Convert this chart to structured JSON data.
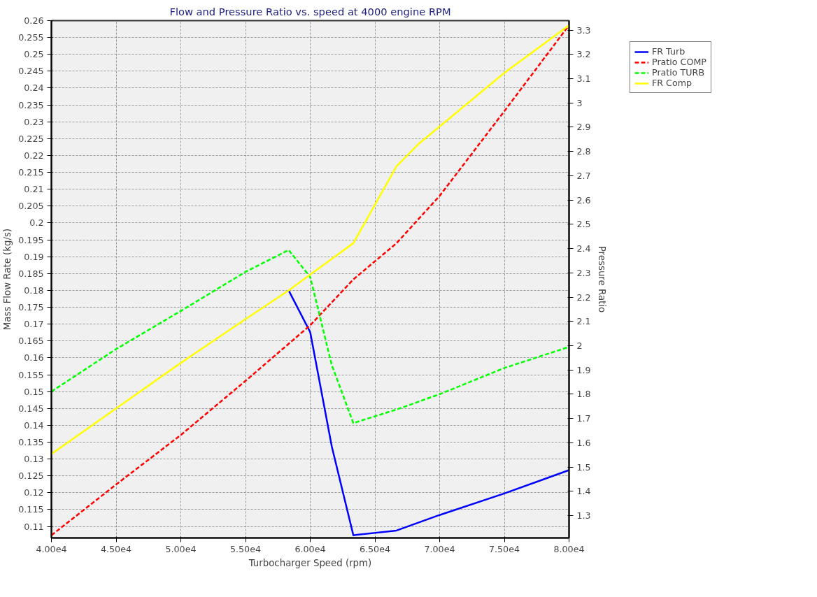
{
  "chart_data": {
    "type": "line",
    "title": "Flow and Pressure Ratio vs. speed at 4000 engine RPM",
    "xlabel": "Turbocharger Speed (rpm)",
    "ylabel": "Mass Flow Rate (kg/s)",
    "y2label": "Pressure Ratio",
    "xlim": [
      40000,
      80000
    ],
    "xticks": [
      {
        "value": 40000,
        "label": "4.00e4"
      },
      {
        "value": 45000,
        "label": "4.50e4"
      },
      {
        "value": 50000,
        "label": "5.00e4"
      },
      {
        "value": 55000,
        "label": "5.50e4"
      },
      {
        "value": 60000,
        "label": "6.00e4"
      },
      {
        "value": 65000,
        "label": "6.50e4"
      },
      {
        "value": 70000,
        "label": "7.00e4"
      },
      {
        "value": 75000,
        "label": "7.50e4"
      },
      {
        "value": 80000,
        "label": "8.00e4"
      }
    ],
    "ylim": [
      0.1066,
      0.26
    ],
    "yticks": [
      0.11,
      0.115,
      0.12,
      0.125,
      0.13,
      0.135,
      0.14,
      0.145,
      0.15,
      0.155,
      0.16,
      0.165,
      0.17,
      0.175,
      0.18,
      0.185,
      0.19,
      0.195,
      0.2,
      0.205,
      0.21,
      0.215,
      0.22,
      0.225,
      0.23,
      0.235,
      0.24,
      0.245,
      0.25,
      0.255,
      0.26
    ],
    "y2lim": [
      1.208,
      3.339
    ],
    "y2ticks": [
      1.3,
      1.4,
      1.5,
      1.6,
      1.7,
      1.8,
      1.9,
      2,
      2.1,
      2.2,
      2.3,
      2.4,
      2.5,
      2.6,
      2.7,
      2.8,
      2.9,
      3,
      3.1,
      3.2,
      3.3
    ],
    "grid": true,
    "legend": "top right",
    "marker": "none",
    "series": [
      {
        "name": "FR Turb",
        "color": "#0000ff",
        "line_style": "solid",
        "x": [
          58333,
          60000,
          61667,
          63333,
          66667,
          70000,
          75000,
          80000
        ],
        "values": [
          0.18,
          0.1676,
          0.1337,
          0.1074,
          0.1088,
          0.1134,
          0.1198,
          0.1267
        ]
      },
      {
        "name": "Pratio COMP",
        "color": "#ff0000",
        "line_style": "dashed",
        "axis": "y2",
        "x": [
          40000,
          45000,
          50000,
          55000,
          60000,
          63333,
          66667,
          70000,
          75000,
          80000
        ],
        "values": [
          1.219,
          1.428,
          1.632,
          1.855,
          2.084,
          2.273,
          2.422,
          2.617,
          2.966,
          3.32
        ]
      },
      {
        "name": "Pratio TURB",
        "color": "#00ff00",
        "line_style": "dashed",
        "axis": "y2",
        "x": [
          40000,
          45000,
          50000,
          55000,
          58333,
          60000,
          61667,
          63333,
          66667,
          70000,
          75000,
          80000
        ],
        "values": [
          1.811,
          1.986,
          2.143,
          2.304,
          2.394,
          2.283,
          1.92,
          1.681,
          1.737,
          1.8,
          1.908,
          1.995
        ]
      },
      {
        "name": "FR Comp",
        "color": "#ffff00",
        "line_style": "solid",
        "x": [
          40000,
          45000,
          50000,
          55000,
          58333,
          60000,
          63333,
          66667,
          68333,
          75000,
          80000
        ],
        "values": [
          0.1315,
          0.145,
          0.1585,
          0.1715,
          0.18,
          0.1847,
          0.194,
          0.2168,
          0.2233,
          0.2445,
          0.2586
        ]
      }
    ]
  }
}
